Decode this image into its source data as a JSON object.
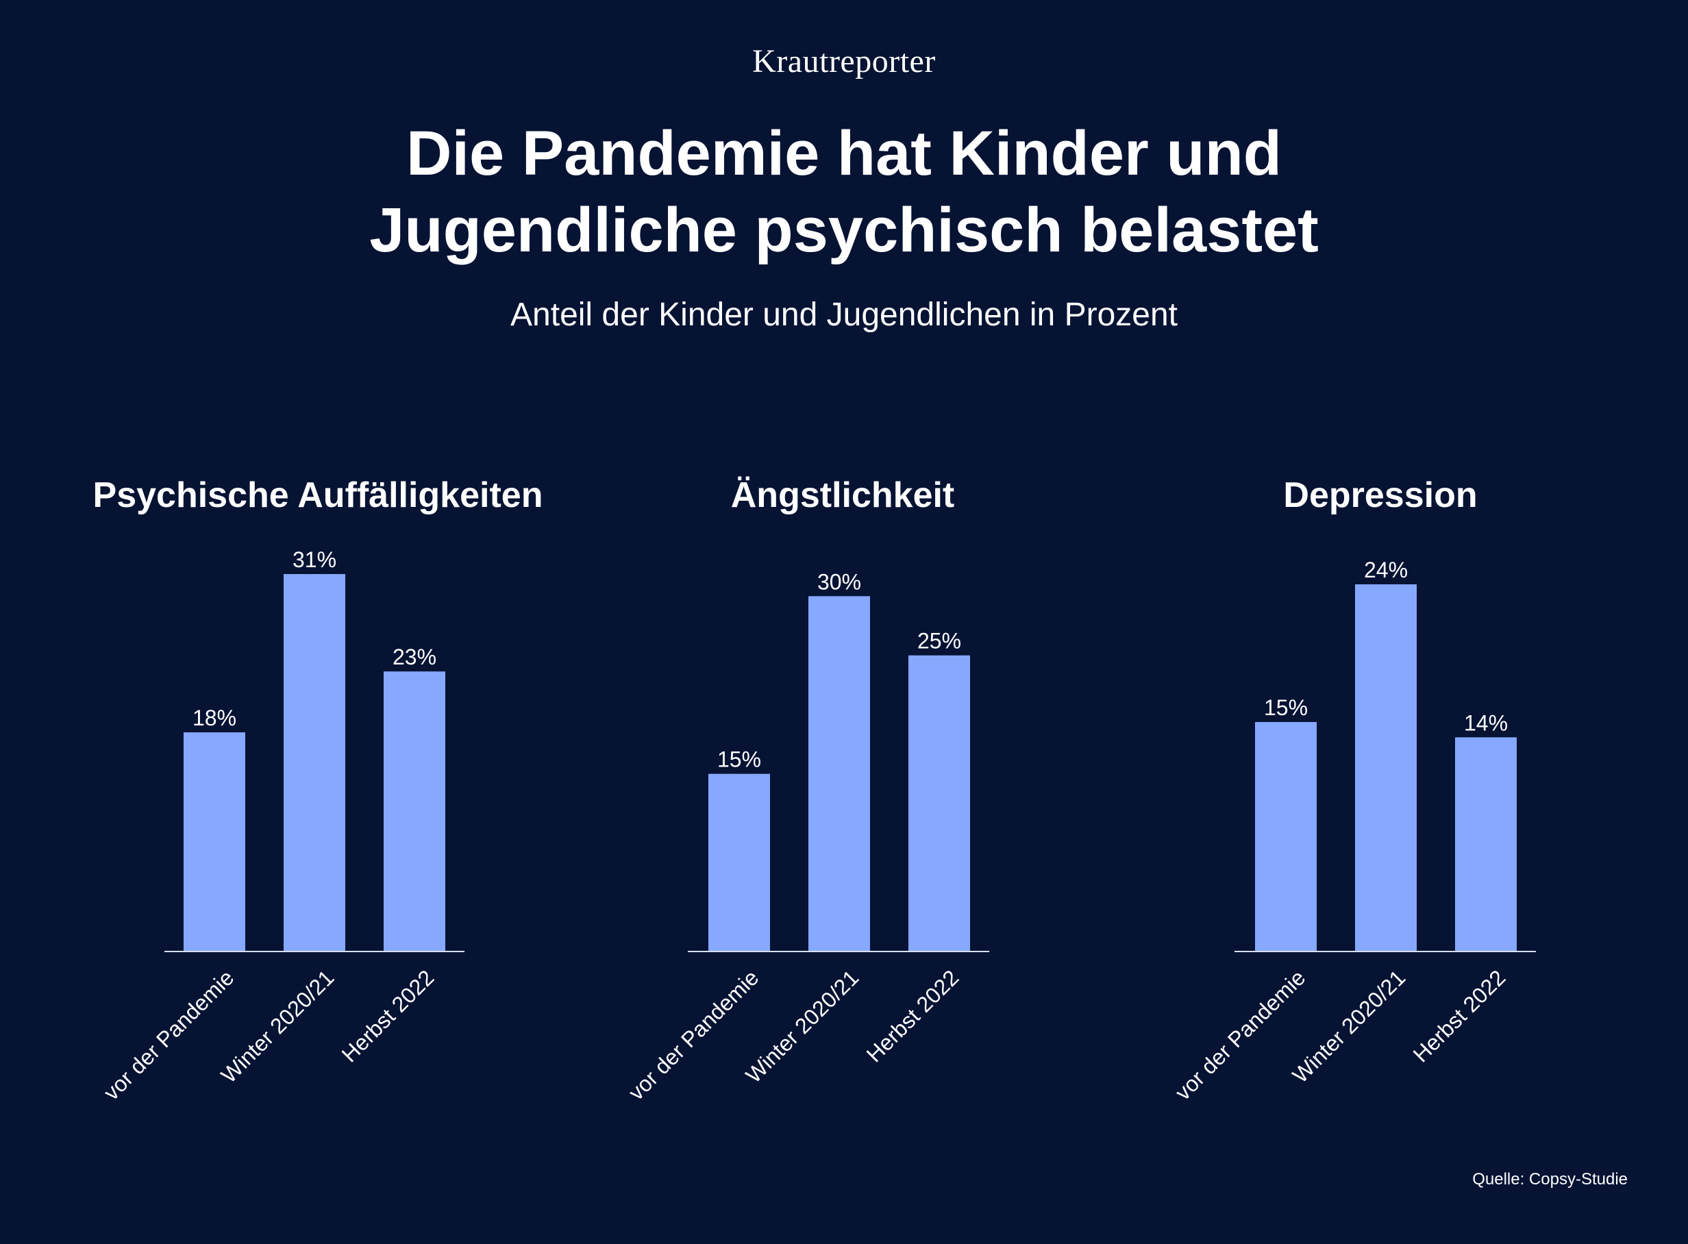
{
  "brand": "Krautreporter",
  "title_lines": [
    "Die Pandemie hat Kinder und",
    "Jugendliche psychisch belastet"
  ],
  "subtitle": "Anteil der Kinder und Jugendlichen in Prozent",
  "source": "Quelle: Copsy-Studie",
  "colors": {
    "background": "#061333",
    "bar": "#86A8FF",
    "text": "#FFFFFF",
    "axis": "#D8E0F5"
  },
  "chart_data": [
    {
      "type": "bar",
      "title": "Psychische Auffälligkeiten",
      "categories": [
        "vor der Pandemie",
        "Winter 2020/21",
        "Herbst 2022"
      ],
      "values": [
        18,
        31,
        23
      ],
      "value_labels": [
        "18%",
        "31%",
        "23%"
      ],
      "ylim": [
        0,
        31
      ]
    },
    {
      "type": "bar",
      "title": "Ängstlichkeit",
      "categories": [
        "vor der Pandemie",
        "Winter 2020/21",
        "Herbst 2022"
      ],
      "values": [
        15,
        30,
        25
      ],
      "value_labels": [
        "15%",
        "30%",
        "25%"
      ],
      "ylim": [
        0,
        31
      ]
    },
    {
      "type": "bar",
      "title": "Depression",
      "categories": [
        "vor der Pandemie",
        "Winter 2020/21",
        "Herbst 2022"
      ],
      "values": [
        15,
        24,
        14
      ],
      "value_labels": [
        "15%",
        "24%",
        "14%"
      ],
      "ylim": [
        0,
        24
      ]
    }
  ]
}
